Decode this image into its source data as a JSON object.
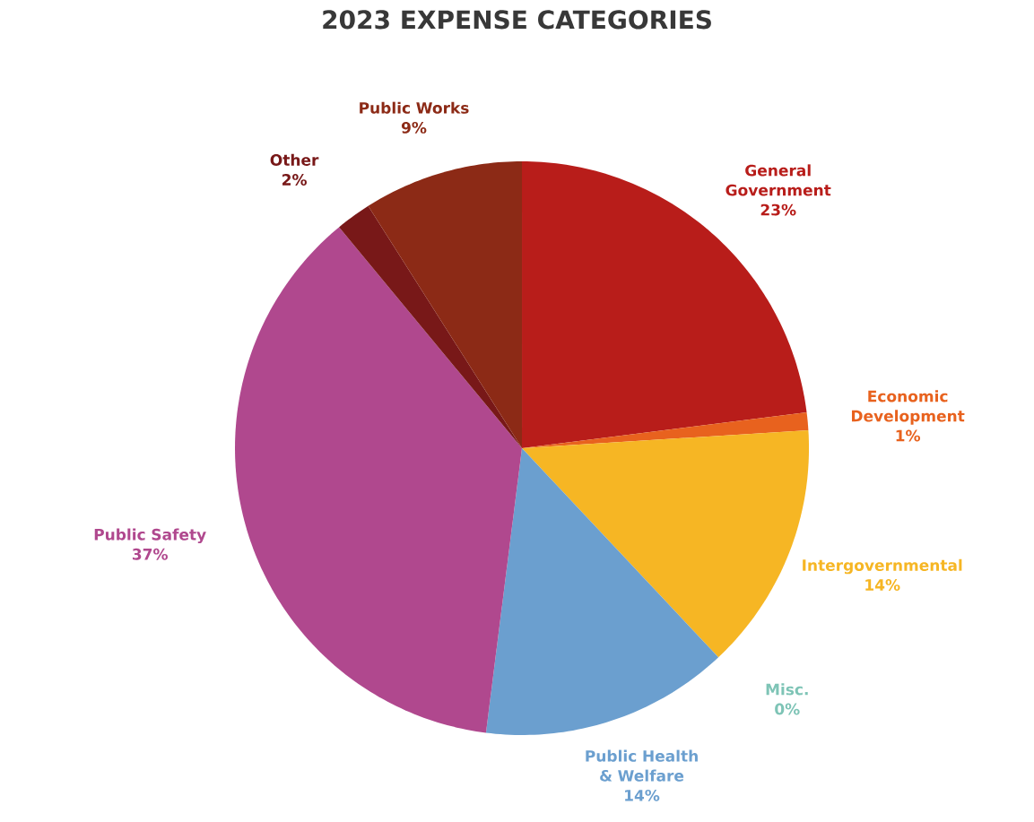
{
  "chart_data": {
    "type": "pie",
    "title": "2023 EXPENSE CATEGORIES",
    "categories": [
      "General Government",
      "Economic Development",
      "Intergovernmental",
      "Misc.",
      "Public Health & Welfare",
      "Public Safety",
      "Other",
      "Public Works"
    ],
    "values": [
      23,
      1,
      14,
      0,
      14,
      37,
      2,
      9
    ],
    "value_labels": [
      "23%",
      "1%",
      "14%",
      "0%",
      "14%",
      "37%",
      "2%",
      "9%"
    ],
    "colors": [
      "#b81d1a",
      "#e8621e",
      "#f6b624",
      "#7ec4b6",
      "#6b9fcf",
      "#b0488e",
      "#781818",
      "#8c2a16"
    ]
  }
}
